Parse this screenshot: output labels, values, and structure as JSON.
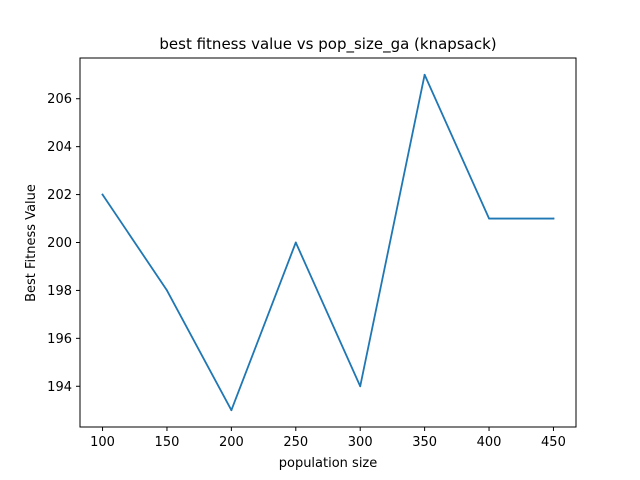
{
  "chart_data": {
    "type": "line",
    "title": "best fitness value vs pop_size_ga (knapsack)",
    "xlabel": "population size",
    "ylabel": "Best Fitness Value",
    "x": [
      100,
      150,
      200,
      250,
      300,
      350,
      400,
      450
    ],
    "xlim": [
      82.5,
      467.5
    ],
    "ylim": [
      192.3,
      207.7
    ],
    "x_ticks": [
      100,
      150,
      200,
      250,
      300,
      350,
      400,
      450
    ],
    "y_ticks": [
      194,
      196,
      198,
      200,
      202,
      204,
      206
    ],
    "grid": false,
    "series": [
      {
        "values": [
          202,
          198,
          193,
          200,
          194,
          207,
          201,
          201
        ],
        "color": "#1f77b4"
      }
    ]
  }
}
